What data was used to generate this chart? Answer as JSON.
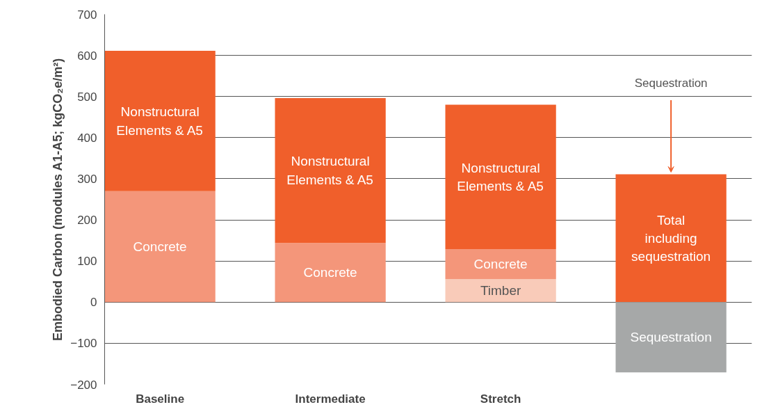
{
  "chart_data": {
    "type": "bar",
    "stacked": true,
    "categories": [
      "Baseline",
      "Intermediate",
      "Stretch",
      null
    ],
    "series": [
      {
        "name": "Timber",
        "color": "#f9cbb9",
        "values": [
          null,
          null,
          56,
          null
        ]
      },
      {
        "name": "Concrete",
        "color": "#f4967a",
        "values": [
          270,
          144,
          73,
          null
        ]
      },
      {
        "name": "Nonstructural Elements & A5",
        "color": "#f05f2b",
        "values": [
          341,
          352,
          351,
          null
        ]
      },
      {
        "name": "Total including sequestration",
        "color": "#f05f2b",
        "values": [
          null,
          null,
          null,
          311
        ]
      },
      {
        "name": "Sequestration",
        "color": "#a6a8a8",
        "values": [
          null,
          null,
          null,
          -171
        ]
      }
    ],
    "ylabel": "Embodied Carbon (modules A1-A5; kgCO₂e/m²)",
    "ylim": [
      -200,
      700
    ],
    "yticks": [
      -200,
      -100,
      0,
      100,
      200,
      300,
      400,
      500,
      600,
      700
    ],
    "grid": "y",
    "legend": false,
    "annotations": [
      {
        "text": "Sequestration",
        "y": 311
      }
    ]
  }
}
